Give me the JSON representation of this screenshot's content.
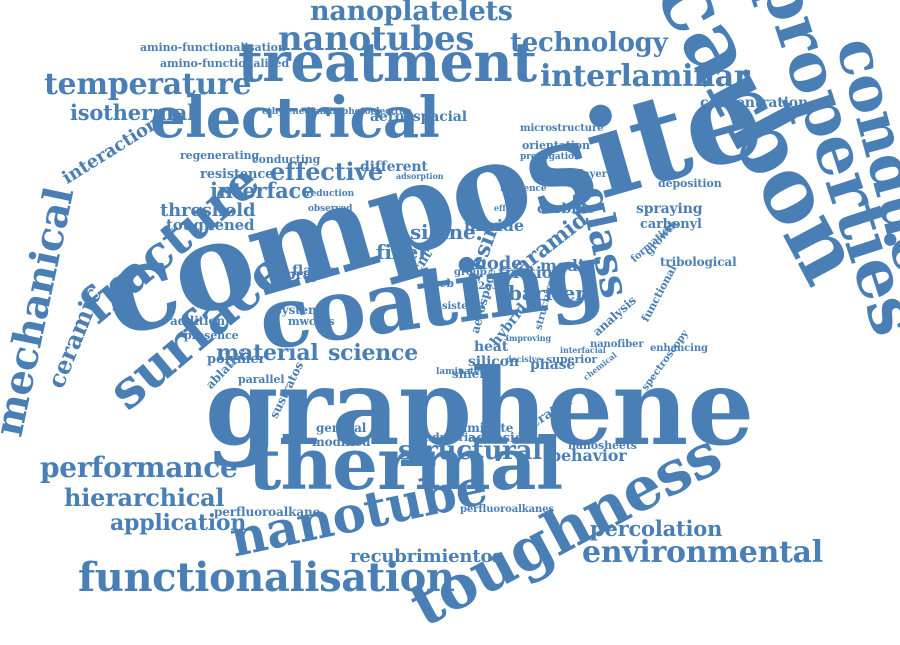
{
  "palette": {
    "word": "#4a7fb5",
    "background": "#ffffff"
  },
  "words": [
    "composite",
    "graphene",
    "coating",
    "carbon",
    "thermal",
    "conductivity",
    "properties",
    "electrical",
    "treatment",
    "toughness",
    "surface",
    "multifunctional",
    "nanotube",
    "functionalisation",
    "mechanical",
    "fracture",
    "glass",
    "nanotubes",
    "nanoplatelets",
    "technology",
    "temperature",
    "interlaminar",
    "isothermal",
    "performance",
    "hierarchical",
    "application",
    "environmental",
    "percolation",
    "ceramic",
    "structural",
    "science",
    "material",
    "interface",
    "effective",
    "threshold",
    "toughened",
    "behavior",
    "silane",
    "fiber",
    "nitride",
    "carbide",
    "aramid",
    "resin",
    "mode",
    "concentration",
    "aeroespacial",
    "recubrimientos",
    "amino-functionalisation",
    "amino-functionalised",
    "interaction",
    "resistence",
    "heat",
    "silicon",
    "polymer",
    "system",
    "spraying",
    "carbonyl",
    "tribological",
    "functional",
    "hybrid",
    "adhesión",
    "modified",
    "general",
    "sustratos",
    "scratch",
    "sistema",
    "regenerating",
    "conducting",
    "ethylenediamine",
    "photoelectron",
    "microstructure",
    "orientation",
    "barrier",
    "friction",
    "media",
    "superior",
    "nanofiber",
    "spectroscopy",
    "enhancing",
    "nanosheets",
    "laminate",
    "shield",
    "phase",
    "analysis",
    "growth",
    "deposition",
    "perfluoroalkane",
    "perfluoroalkanes",
    "industria",
    "flame",
    "spray",
    "ablative",
    "parallel",
    "addition",
    "presence",
    "different",
    "mwcnts",
    "aerospace",
    "structure",
    "propagation",
    "influence",
    "multilayer",
    "formation",
    "cnt",
    "web",
    "al2o3",
    "group",
    "decisive",
    "improving",
    "reduction",
    "observed",
    "adsorption",
    "effect",
    "interfacial",
    "chemical",
    "laminates"
  ]
}
